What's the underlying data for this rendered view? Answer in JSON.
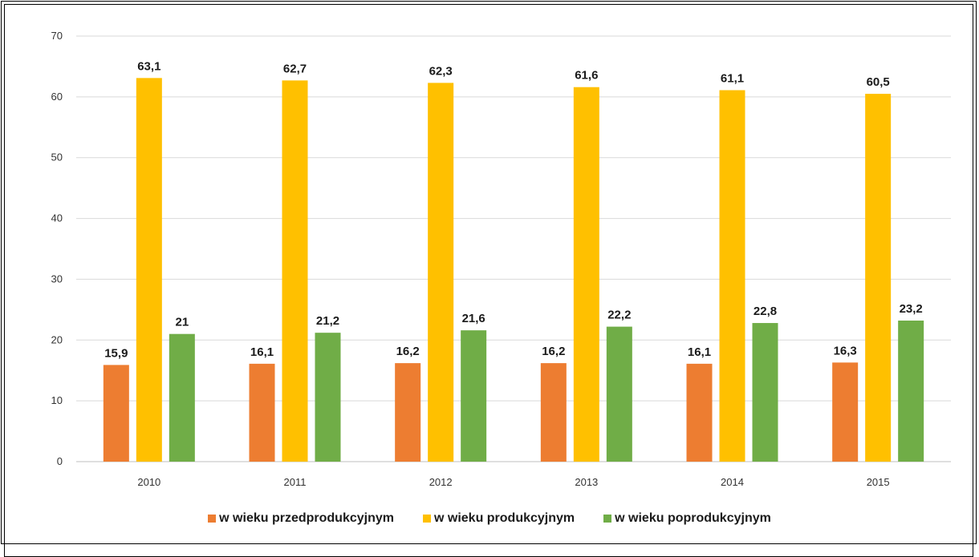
{
  "chart_data": {
    "type": "bar",
    "categories": [
      "2010",
      "2011",
      "2012",
      "2013",
      "2014",
      "2015"
    ],
    "series": [
      {
        "name": "w wieku przedprodukcyjnym",
        "color": "#ED7D31",
        "values": [
          15.9,
          16.1,
          16.2,
          16.2,
          16.1,
          16.3
        ],
        "labels": [
          "15,9",
          "16,1",
          "16,2",
          "16,2",
          "16,1",
          "16,3"
        ]
      },
      {
        "name": "w wieku produkcyjnym",
        "color": "#FFC000",
        "values": [
          63.1,
          62.7,
          62.3,
          61.6,
          61.1,
          60.5
        ],
        "labels": [
          "63,1",
          "62,7",
          "62,3",
          "61,6",
          "61,1",
          "60,5"
        ]
      },
      {
        "name": "w wieku poprodukcyjnym",
        "color": "#70AD47",
        "values": [
          21,
          21.2,
          21.6,
          22.2,
          22.8,
          23.2
        ],
        "labels": [
          "21",
          "21,2",
          "21,6",
          "22,2",
          "22,8",
          "23,2"
        ]
      }
    ],
    "ylim": [
      0,
      70
    ],
    "yticks": [
      "0",
      "10",
      "20",
      "30",
      "40",
      "50",
      "60",
      "70"
    ],
    "grid": true,
    "legend_position": "bottom",
    "title": "",
    "xlabel": "",
    "ylabel": ""
  }
}
